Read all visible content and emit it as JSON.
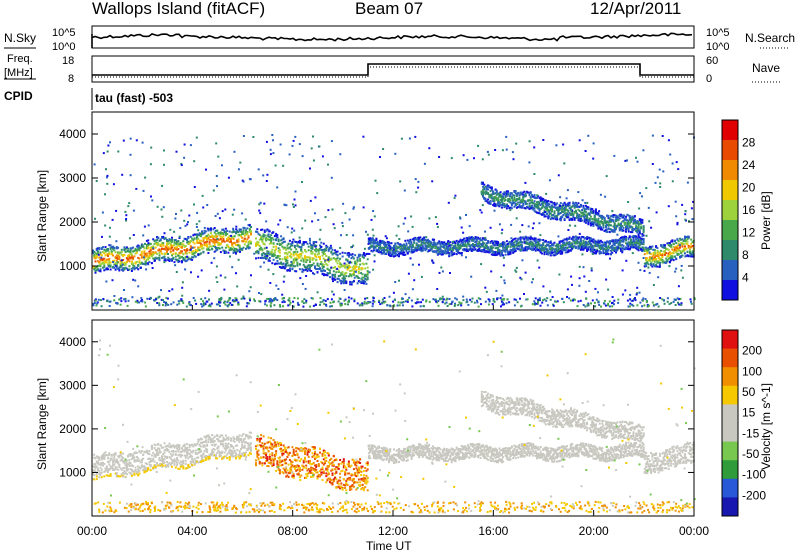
{
  "header": {
    "station": "Wallops Island (fitACF)",
    "beam": "Beam 07",
    "date": "12/Apr/2011"
  },
  "top_panels": {
    "nsky_label": "N.Sky",
    "nsearch_label": "N.Search",
    "exp_ticks": [
      "10^5",
      "10^0"
    ],
    "exp_ticks_right": [
      "10^5",
      "10^0"
    ],
    "freq_label": "Freq.",
    "freq_unit": "[MHz]",
    "freq_ticks": [
      "18",
      "8"
    ],
    "nave_label": "Nave",
    "nave_ticks": [
      "60",
      "0"
    ],
    "cpid_label": "CPID",
    "cpid_text": "tau (fast) -503"
  },
  "colors": {
    "power_scale": [
      "#1010e0",
      "#2860c0",
      "#2e8a6a",
      "#49a84a",
      "#9ed23c",
      "#f0c800",
      "#f08a00",
      "#e84a00",
      "#e00000"
    ],
    "velocity_scale": [
      "#1818b0",
      "#2858d8",
      "#2f9b3a",
      "#78c850",
      "#c8c8c0",
      "#c8c8c0",
      "#f5c800",
      "#f09000",
      "#e85000",
      "#e01010"
    ]
  },
  "chart_data": [
    {
      "type": "heatmap",
      "name": "power-panel",
      "ylabel": "Slant Range [km]",
      "ylim": [
        0,
        4500
      ],
      "y_ticks": [
        "1000",
        "2000",
        "3000",
        "4000"
      ],
      "colorbar_label": "Power [dB]",
      "colorbar_ticks": [
        "28",
        "24",
        "20",
        "16",
        "12",
        "8",
        "4"
      ],
      "colorbar_range": [
        0,
        32
      ],
      "bands": [
        {
          "t0": 0,
          "t1": 6.3,
          "r_start": 1100,
          "r_end": 1700,
          "width": 350,
          "level": 28
        },
        {
          "t0": 6.5,
          "t1": 11.0,
          "r_start": 1500,
          "r_end": 900,
          "width": 450,
          "level": 20
        },
        {
          "t0": 11.0,
          "t1": 22.0,
          "r_start": 1450,
          "r_end": 1500,
          "width": 200,
          "level": 8
        },
        {
          "t0": 15.5,
          "t1": 22.0,
          "r_start": 2700,
          "r_end": 1850,
          "width": 250,
          "level": 10
        },
        {
          "t0": 22.0,
          "t1": 24.0,
          "r_start": 1250,
          "r_end": 1450,
          "width": 300,
          "level": 26
        }
      ]
    },
    {
      "type": "heatmap",
      "name": "velocity-panel",
      "ylabel": "Slant Range [km]",
      "xlabel": "Time UT",
      "ylim": [
        0,
        4500
      ],
      "y_ticks": [
        "1000",
        "2000",
        "3000",
        "4000"
      ],
      "x_ticks": [
        "00:00",
        "04:00",
        "08:00",
        "12:00",
        "16:00",
        "20:00",
        "00:00"
      ],
      "xlim": [
        0,
        24
      ],
      "colorbar_label": "Velocity [m s^-1]",
      "colorbar_ticks": [
        "200",
        "100",
        "50",
        "15",
        "-15",
        "-50",
        "-100",
        "-200"
      ],
      "colorbar_range": [
        -250,
        250
      ]
    }
  ]
}
